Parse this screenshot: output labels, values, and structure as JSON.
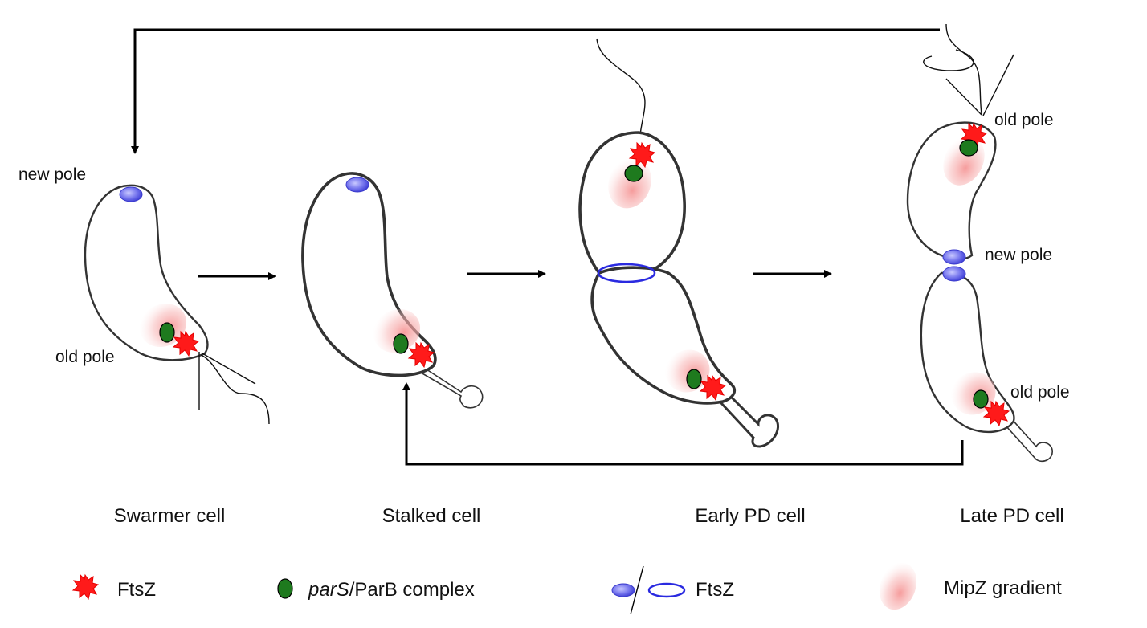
{
  "stages": [
    {
      "label": "Swarmer cell"
    },
    {
      "label": "Stalked cell"
    },
    {
      "label": "Early PD cell"
    },
    {
      "label": "Late PD cell"
    }
  ],
  "pole_labels": {
    "swarmer_new": "new pole",
    "swarmer_old": "old pole",
    "late_old_top": "old pole",
    "late_new": "new pole",
    "late_old_bottom": "old pole"
  },
  "legend": [
    {
      "label": "FtsZ",
      "icon": "ftsz-cluster-icon",
      "color": "#ff1a1a"
    },
    {
      "label_italic": "parS",
      "label_rest": "/ParB complex",
      "icon": "parb-complex-icon",
      "color": "#1e7a1e"
    },
    {
      "label": "FtsZ",
      "icon": "ftsz-ring-icon",
      "color": "#2a2ae0"
    },
    {
      "label": "MipZ gradient",
      "icon": "mipz-gradient-icon",
      "color": "#f7b5b5"
    }
  ]
}
